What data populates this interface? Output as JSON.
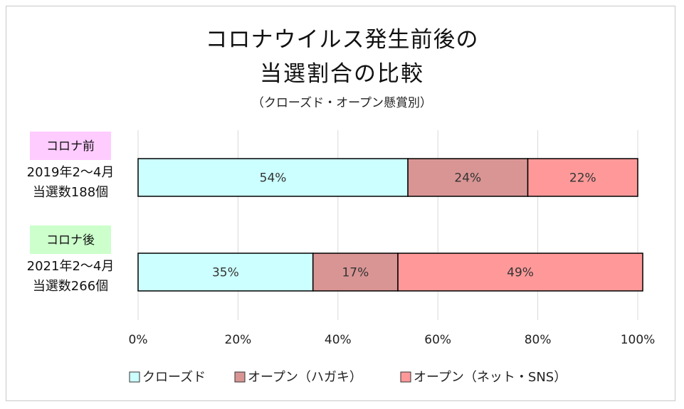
{
  "title": {
    "line1": "コロナウイルス発生前後の",
    "line2": "当選割合の比較",
    "subtitle": "（クローズド・オープン懸賞別）"
  },
  "chart_data": {
    "type": "bar",
    "orientation": "horizontal",
    "stacked": "percent",
    "title": "コロナウイルス発生前後の当選割合の比較",
    "subtitle": "（クローズド・オープン懸賞別）",
    "categories": [
      {
        "badge": "コロナ前",
        "badge_color": "#ffccff",
        "line1": "2019年2～4月",
        "line2": "当選数188個"
      },
      {
        "badge": "コロナ後",
        "badge_color": "#ccffcc",
        "line1": "2021年2～4月",
        "line2": "当選数266個"
      }
    ],
    "series": [
      {
        "name": "クローズド",
        "color": "#ccffff",
        "values": [
          54,
          35
        ],
        "labels": [
          "54%",
          "35%"
        ]
      },
      {
        "name": "オープン（ハガキ）",
        "color": "#d99594",
        "values": [
          24,
          17
        ],
        "labels": [
          "24%",
          "17%"
        ]
      },
      {
        "name": "オープン（ネット・SNS）",
        "color": "#ff9999",
        "values": [
          22,
          49
        ],
        "labels": [
          "22%",
          "49%"
        ]
      }
    ],
    "xlim": [
      0,
      100
    ],
    "xticks": [
      "0%",
      "20%",
      "40%",
      "60%",
      "80%",
      "100%"
    ],
    "grid": true,
    "legend_position": "bottom"
  }
}
